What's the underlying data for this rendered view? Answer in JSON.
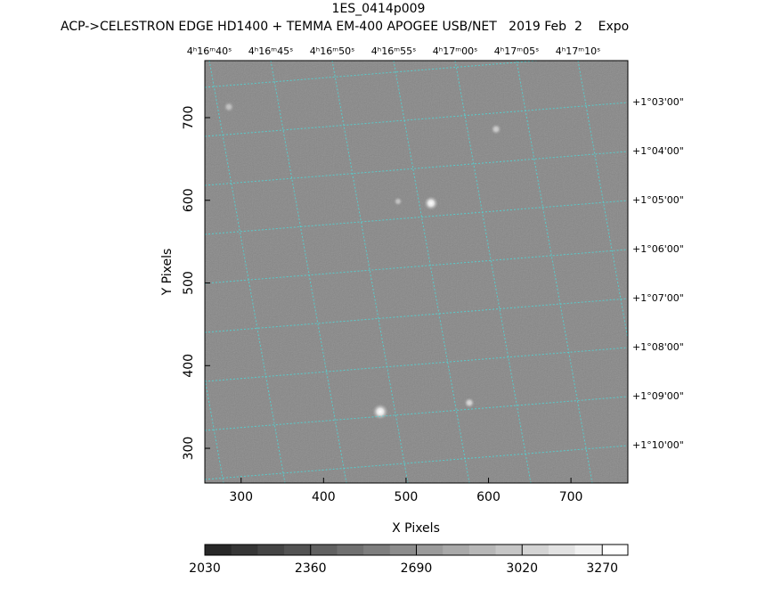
{
  "chart_data": {
    "type": "image",
    "title": "1ES_0414p009",
    "subtitle": "ACP->CELESTRON EDGE HD1400 + TEMMA EM-400 APOGEE USB/NET   2019 Feb  2    Expo",
    "x_label": "X Pixels",
    "y_label": "Y Pixels",
    "xlim": [
      256,
      769
    ],
    "ylim": [
      258,
      769
    ],
    "xticks": [
      300,
      400,
      500,
      600,
      700
    ],
    "yticks": [
      300,
      400,
      500,
      600,
      700
    ],
    "ra_labels": [
      "4ʰ16ᵐ40ˢ",
      "4ʰ16ᵐ45ˢ",
      "4ʰ16ᵐ50ˢ",
      "4ʰ16ᵐ55ˢ",
      "4ʰ17ᵐ00ˢ",
      "4ʰ17ᵐ05ˢ",
      "4ʰ17ᵐ10ˢ"
    ],
    "dec_labels": [
      "+1°03'00\"",
      "+1°04'00\"",
      "+1°05'00\"",
      "+1°06'00\"",
      "+1°07'00\"",
      "+1°08'00\"",
      "+1°09'00\"",
      "+1°10'00\""
    ],
    "colorbar": {
      "lim": [
        2030,
        3350
      ],
      "ticks": [
        2030,
        2360,
        2690,
        3020,
        3270
      ]
    }
  }
}
